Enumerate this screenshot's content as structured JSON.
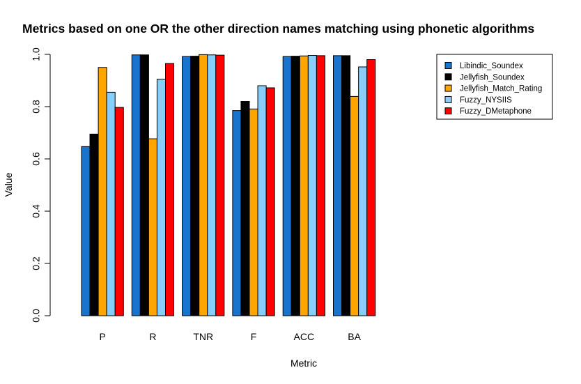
{
  "chart_data": {
    "type": "bar",
    "title": "Metrics based on one OR the other direction names matching using phonetic algorithms",
    "xlabel": "Metric",
    "ylabel": "Value",
    "ylim": [
      0,
      1
    ],
    "yticks": [
      "0.0",
      "0.2",
      "0.4",
      "0.6",
      "0.8",
      "1.0"
    ],
    "legend_position": "top-right",
    "categories": [
      "P",
      "R",
      "TNR",
      "F",
      "ACC",
      "BA"
    ],
    "series": [
      {
        "name": "Libindic_Soundex",
        "color": "#1874CD",
        "values": [
          0.647,
          0.998,
          0.992,
          0.785,
          0.992,
          0.995
        ]
      },
      {
        "name": "Jellyfish_Soundex",
        "color": "#000000",
        "values": [
          0.695,
          0.998,
          0.993,
          0.82,
          0.993,
          0.995
        ]
      },
      {
        "name": "Jellyfish_Match_Rating",
        "color": "#FFA500",
        "values": [
          0.95,
          0.677,
          0.999,
          0.791,
          0.994,
          0.839
        ]
      },
      {
        "name": "Fuzzy_NYSIIS",
        "color": "#87CEFA",
        "values": [
          0.855,
          0.905,
          0.998,
          0.88,
          0.996,
          0.952
        ]
      },
      {
        "name": "Fuzzy_DMetaphone",
        "color": "#FF0000",
        "values": [
          0.797,
          0.965,
          0.997,
          0.872,
          0.995,
          0.98
        ]
      }
    ]
  }
}
